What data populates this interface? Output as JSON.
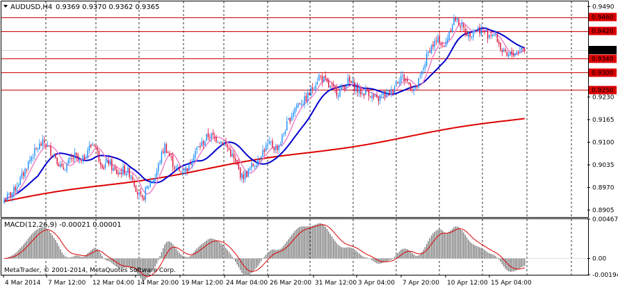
{
  "symbol_header": {
    "symbol": "AUDUSD,H4",
    "ohlc": "0.9369 0.9370 0.9362 0.9365"
  },
  "price_axis": {
    "ticks": [
      "0.9490",
      "0.9230",
      "0.9165",
      "0.9100",
      "0.9035",
      "0.8970",
      "0.8905"
    ],
    "current_price": "0.9365"
  },
  "levels": [
    {
      "label": "0.9460",
      "value": 0.946
    },
    {
      "label": "0.9420",
      "value": 0.942
    },
    {
      "label": "0.9340",
      "value": 0.934
    },
    {
      "label": "0.9300",
      "value": 0.93
    },
    {
      "label": "0.9250",
      "value": 0.925
    }
  ],
  "time_axis": {
    "labels": [
      "4 Mar 2014",
      "7 Mar 12:00",
      "12 Mar 04:00",
      "14 Mar 20:00",
      "19 Mar 12:00",
      "24 Mar 04:00",
      "26 Mar 20:00",
      "31 Mar 12:00",
      "3 Apr 04:00",
      "7 Apr 20:00",
      "10 Apr 12:00",
      "15 Apr 04:00"
    ]
  },
  "macd": {
    "label": "MACD(12,26,9) -0.00021 0.00001",
    "ticks": [
      "0.00467",
      "0.00",
      "-0.00194"
    ]
  },
  "copyright": "MetaTrader, © 2001-2014, MetaQuotes Software Corp.",
  "colors": {
    "bull_candle": "#1e90ff",
    "bear_candle": "#dc143c",
    "level_line": "#cc0000",
    "ma_fast": "#ee82c8",
    "ma_mid": "#0000cd",
    "ma_slow": "#dd0000",
    "macd_hist": "#808080",
    "macd_signal": "#dd0000",
    "label_bg": "#dd0000",
    "grid": "#000000"
  },
  "chart_data": {
    "type": "candlestick",
    "price_range": [
      0.8885,
      0.9505
    ],
    "macd_range": [
      -0.00194,
      0.00467
    ],
    "price_path": [
      [
        0,
        0.8935
      ],
      [
        6,
        0.896
      ],
      [
        12,
        0.901
      ],
      [
        17,
        0.906
      ],
      [
        22,
        0.909
      ],
      [
        25,
        0.91
      ],
      [
        28,
        0.908
      ],
      [
        32,
        0.906
      ],
      [
        36,
        0.902
      ],
      [
        40,
        0.904
      ],
      [
        44,
        0.906
      ],
      [
        48,
        0.904
      ],
      [
        52,
        0.908
      ],
      [
        56,
        0.91
      ],
      [
        59,
        0.9055
      ],
      [
        62,
        0.903
      ],
      [
        65,
        0.9045
      ],
      [
        68,
        0.902
      ],
      [
        71,
        0.901
      ],
      [
        74,
        0.902
      ],
      [
        77,
        0.9015
      ],
      [
        80,
        0.9
      ],
      [
        83,
        0.8955
      ],
      [
        86,
        0.893
      ],
      [
        88,
        0.896
      ],
      [
        91,
        0.8985
      ],
      [
        94,
        0.9
      ],
      [
        97,
        0.905
      ],
      [
        100,
        0.909
      ],
      [
        103,
        0.906
      ],
      [
        106,
        0.903
      ],
      [
        109,
        0.9015
      ],
      [
        112,
        0.902
      ],
      [
        115,
        0.903
      ],
      [
        118,
        0.907
      ],
      [
        121,
        0.9085
      ],
      [
        124,
        0.91
      ],
      [
        127,
        0.912
      ],
      [
        130,
        0.9115
      ],
      [
        133,
        0.911
      ],
      [
        136,
        0.91
      ],
      [
        139,
        0.9085
      ],
      [
        142,
        0.906
      ],
      [
        145,
        0.903
      ],
      [
        148,
        0.9
      ],
      [
        151,
        0.901
      ],
      [
        154,
        0.903
      ],
      [
        157,
        0.9045
      ],
      [
        160,
        0.907
      ],
      [
        163,
        0.9085
      ],
      [
        166,
        0.9095
      ],
      [
        169,
        0.908
      ],
      [
        172,
        0.91
      ],
      [
        175,
        0.914
      ],
      [
        178,
        0.917
      ],
      [
        181,
        0.92
      ],
      [
        184,
        0.9215
      ],
      [
        187,
        0.922
      ],
      [
        190,
        0.924
      ],
      [
        193,
        0.9265
      ],
      [
        196,
        0.929
      ],
      [
        199,
        0.928
      ],
      [
        202,
        0.926
      ],
      [
        205,
        0.925
      ],
      [
        208,
        0.9245
      ],
      [
        211,
        0.926
      ],
      [
        214,
        0.9275
      ],
      [
        217,
        0.9265
      ],
      [
        220,
        0.925
      ],
      [
        223,
        0.924
      ],
      [
        226,
        0.925
      ],
      [
        229,
        0.923
      ],
      [
        232,
        0.922
      ],
      [
        235,
        0.9235
      ],
      [
        238,
        0.924
      ],
      [
        241,
        0.9245
      ],
      [
        244,
        0.9275
      ],
      [
        247,
        0.929
      ],
      [
        250,
        0.928
      ],
      [
        253,
        0.926
      ],
      [
        256,
        0.925
      ],
      [
        259,
        0.9285
      ],
      [
        262,
        0.933
      ],
      [
        265,
        0.937
      ],
      [
        268,
        0.9385
      ],
      [
        271,
        0.9395
      ],
      [
        274,
        0.937
      ],
      [
        277,
        0.942
      ],
      [
        280,
        0.9455
      ],
      [
        283,
        0.9445
      ],
      [
        286,
        0.9425
      ],
      [
        289,
        0.941
      ],
      [
        292,
        0.942
      ],
      [
        295,
        0.9425
      ],
      [
        298,
        0.942
      ],
      [
        301,
        0.941
      ],
      [
        304,
        0.9415
      ],
      [
        307,
        0.9395
      ],
      [
        310,
        0.936
      ],
      [
        313,
        0.9345
      ],
      [
        316,
        0.9355
      ],
      [
        319,
        0.936
      ],
      [
        322,
        0.937
      ],
      [
        324,
        0.9365
      ]
    ]
  }
}
